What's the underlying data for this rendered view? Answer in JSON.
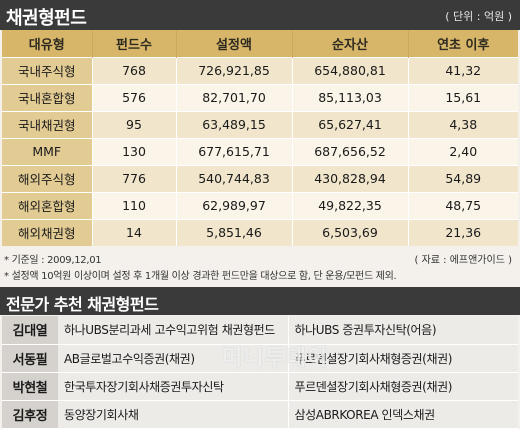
{
  "section1": {
    "title": "채권형펀드",
    "unit": "( 단위 : 억원 )",
    "headers": [
      "대유형",
      "펀드수",
      "설정액",
      "순자산",
      "연초 이후"
    ],
    "rows": [
      [
        "국내주식형",
        "768",
        "726,921,85",
        "654,880,81",
        "41,32"
      ],
      [
        "국내혼합형",
        "576",
        "82,701,70",
        "85,113,03",
        "15,61"
      ],
      [
        "국내채권형",
        "95",
        "63,489,15",
        "65,627,41",
        "4,38"
      ],
      [
        "MMF",
        "130",
        "677,615,71",
        "687,656,52",
        "2,40"
      ],
      [
        "해외주식형",
        "776",
        "540,744,83",
        "430,828,94",
        "54,89"
      ],
      [
        "해외혼합형",
        "110",
        "62,989,97",
        "49,822,35",
        "48,75"
      ],
      [
        "해외채권형",
        "14",
        "5,851,46",
        "6,503,69",
        "21,36"
      ]
    ]
  },
  "notes": {
    "date": "* 기준일 : 2009,12,01",
    "source": "( 자료 : 에프앤가이드 )",
    "criteria": "* 설정액 10억원 이상이며 설정 후 1개월 이상 경과한 펀드만을 대상으로 함, 단 운용/모펀드 제외."
  },
  "section2": {
    "title": "전문가 추천 채권형펀드",
    "rows": [
      {
        "name": "김대열",
        "fund1": "하나UBS분리과세 고수익고위험 채권형펀드",
        "fund2": "하나UBS 증권투자신탁(어음)"
      },
      {
        "name": "서동필",
        "fund1": "AB글로벌고수익증권(채권)",
        "fund2": "푸르덴셜장기회사채형증권(채권)"
      },
      {
        "name": "박현철",
        "fund1": "한국투자장기회사채증권투자신탁",
        "fund2": "푸르덴셜장기회사채형증권(채권)"
      },
      {
        "name": "김후정",
        "fund1": "동양장기회사채",
        "fund2": "삼성ABRKOREA 인덱스채권"
      }
    ]
  },
  "watermark": "머니투데이"
}
